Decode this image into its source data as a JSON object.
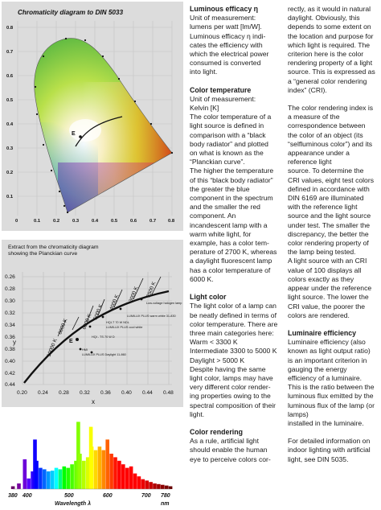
{
  "diagram1": {
    "title": "Chromaticity diagram to DIN 5033",
    "x_ticks": [
      "0",
      "0.1",
      "0.2",
      "0.3",
      "0.4",
      "0.5",
      "0.6",
      "0.7",
      "0.8"
    ],
    "y_ticks": [
      "0.1",
      "0.2",
      "0.3",
      "0.4",
      "0.5",
      "0.6",
      "0.7",
      "0.8"
    ],
    "point_label": "E"
  },
  "diagram2": {
    "title_line1": "Extract from the chromaticity diagram",
    "title_line2": "showing the Planckian curve",
    "xlabel": "x",
    "ylabel": "y",
    "x_ticks": [
      "0.20",
      "0.24",
      "0.28",
      "0.32",
      "0.36",
      "0.40",
      "0.44",
      "0.48"
    ],
    "y_ticks": [
      "0.44",
      "0.42",
      "0.40",
      "0.38",
      "0.36",
      "0.34",
      "0.32",
      "0.30",
      "0.28",
      "0.26"
    ],
    "temps": [
      "10000 K",
      "8000 K",
      "6000 K",
      "5000 K",
      "4000 K",
      "3000 K",
      "2500 K"
    ],
    "point_label": "E",
    "annotations": {
      "halogen": "Low-voltage halogen lamp",
      "lumilux_ww": "LUMILUX PLUS warm white 31-830",
      "hqi_ndl": "HQI-T 70 W NDL",
      "lumilux_cw": "LUMILUX PLUS cool white",
      "hqi_wdl": "HQI - TS 70 W D",
      "hmi": "HMI",
      "daylight": "LUMILUX PLUS Daylight 11-860"
    }
  },
  "spectrum": {
    "xlabel": "Wavelength λ",
    "ticks": [
      "380",
      "400",
      "500",
      "600",
      "700",
      "780"
    ],
    "unit": "nm",
    "chart_data": {
      "type": "bar",
      "title": "",
      "xlabel": "Wavelength λ",
      "ylabel": "",
      "xlim": [
        380,
        780
      ],
      "x": [
        380,
        395,
        410,
        420,
        430,
        436,
        440,
        450,
        460,
        470,
        480,
        490,
        500,
        510,
        520,
        530,
        540,
        546,
        550,
        560,
        570,
        578,
        580,
        590,
        600,
        610,
        620,
        630,
        640,
        650,
        660,
        670,
        680,
        690,
        700,
        710,
        720,
        730,
        740,
        750,
        760,
        770,
        780
      ],
      "values": [
        0.04,
        0.08,
        0.42,
        0.15,
        0.25,
        0.7,
        0.4,
        0.3,
        0.28,
        0.25,
        0.26,
        0.3,
        0.28,
        0.32,
        0.3,
        0.35,
        0.4,
        0.95,
        0.5,
        0.4,
        0.45,
        0.88,
        0.6,
        0.55,
        0.6,
        0.55,
        0.7,
        0.5,
        0.45,
        0.4,
        0.35,
        0.3,
        0.32,
        0.22,
        0.18,
        0.14,
        0.12,
        0.1,
        0.08,
        0.07,
        0.06,
        0.05,
        0.04
      ]
    }
  },
  "col2": {
    "h1": "Luminous efficacy η",
    "p1": "Unit of measurement:\nlumens per watt [lm/W].\nLuminous efficacy η indi-\ncates the efficiency with\nwhich the electrical power\nconsumed is converted\ninto light.",
    "h2": "Color temperature",
    "p2": "Unit of measurement:\nKelvin [K]\nThe color temperature of a\nlight source is defined in\ncomparison with a “black\nbody radiator” and plotted\non what is known as the\n“Planckian curve”.\nThe higher the temperature\nof this “black body radiator”\nthe greater the blue\ncomponent in the spectrum\nand the smaller the red\ncomponent. An\nincandescent lamp with a\nwarm white light, for\nexample, has a color tem-\nperature of 2700 K, whereas\na daylight fluorescent lamp\nhas a color temperature of\n6000 K.",
    "h3": "Light color",
    "p3": "The light color of a lamp can\nbe neatly defined in terms of\ncolor temperature. There are\nthree main categories here:\nWarm < 3300 K\nIntermediate 3300 to 5000 K\nDaylight > 5000 K\nDespite having the same\nlight color, lamps may have\nvery different color render-\ning properties owing to the\nspectral composition of their\nlight.",
    "h4": "Color rendering",
    "p4": "As a rule, artificial light\nshould enable the human\neye to perceive colors cor-"
  },
  "col3": {
    "p1": "rectly, as it would in natural\ndaylight. Obviously, this\ndepends to some extent on\nthe location and purpose for\nwhich light is required. The\ncriterion here is the color\nrendering property of a light\nsource. This is expressed as\na “general color rendering\nindex” (CRI).",
    "p2": "The color rendering index is\na measure of the\ncorrespondence between\nthe color of an object (its\n“selfluminous color”) and its\nappearance under a\nreference light\nsource. To determine the\nCRI values, eight test colors\ndefined in accordance with\nDIN 6169 are illuminated\nwith the reference light\nsource and the light source\nunder test. The smaller the\ndiscrepancy, the better the\ncolor rendering property of\nthe lamp being tested.\nA light source with an CRI\nvalue of 100 displays all\ncolors exactly as they\nappear under the reference\nlight source. The lower the\nCRI value, the poorer the\ncolors are rendered.",
    "h3": "Luminaire efficiency",
    "p3": "Luminaire efficiency (also\nknown as light output ratio)\nis an important criterion in\ngauging the energy\nefficiency of a luminaire.\nThis is the ratio between the\nluminous flux emitted by the\nluminous flux of the lamp (or lamps)\ninstalled in the luminaire.",
    "p4": "For detailed information on\nindoor lighting with artificial\nlight, see DIN 5035."
  }
}
